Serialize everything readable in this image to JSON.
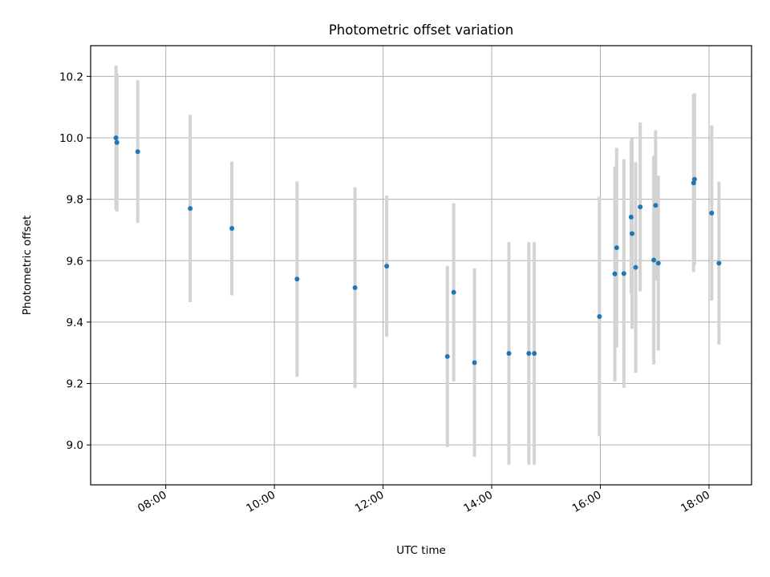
{
  "chart_data": {
    "type": "scatter",
    "title": "Photometric offset variation",
    "xlabel": "UTC time",
    "ylabel": "Photometric offset",
    "x_ticks": [
      "08:00",
      "10:00",
      "12:00",
      "14:00",
      "16:00",
      "18:00"
    ],
    "y_ticks": [
      "9.0",
      "9.2",
      "9.4",
      "9.6",
      "9.8",
      "10.0",
      "10.2"
    ],
    "xlim": [
      "06:37",
      "18:47"
    ],
    "ylim": [
      8.87,
      10.3
    ],
    "grid": true,
    "colors": {
      "point": "#1f77b4",
      "errorbar": "#d3d3d3",
      "grid": "#b0b0b0"
    },
    "points": [
      {
        "x": "07:05",
        "y": 10.0,
        "err": 0.235
      },
      {
        "x": "07:06",
        "y": 9.985,
        "err": 0.225
      },
      {
        "x": "07:29",
        "y": 9.955,
        "err": 0.232
      },
      {
        "x": "08:27",
        "y": 9.77,
        "err": 0.305
      },
      {
        "x": "09:13",
        "y": 9.705,
        "err": 0.218
      },
      {
        "x": "10:25",
        "y": 9.54,
        "err": 0.318
      },
      {
        "x": "11:29",
        "y": 9.512,
        "err": 0.327
      },
      {
        "x": "12:04",
        "y": 9.582,
        "err": 0.23
      },
      {
        "x": "13:11",
        "y": 9.288,
        "err": 0.295
      },
      {
        "x": "13:18",
        "y": 9.497,
        "err": 0.29
      },
      {
        "x": "13:41",
        "y": 9.268,
        "err": 0.307
      },
      {
        "x": "14:19",
        "y": 9.298,
        "err": 0.362
      },
      {
        "x": "14:41",
        "y": 9.298,
        "err": 0.362
      },
      {
        "x": "14:47",
        "y": 9.298,
        "err": 0.362
      },
      {
        "x": "15:59",
        "y": 9.418,
        "err": 0.39
      },
      {
        "x": "16:16",
        "y": 9.557,
        "err": 0.35
      },
      {
        "x": "16:18",
        "y": 9.642,
        "err": 0.325
      },
      {
        "x": "16:26",
        "y": 9.558,
        "err": 0.372
      },
      {
        "x": "16:34",
        "y": 9.742,
        "err": 0.25
      },
      {
        "x": "16:35",
        "y": 9.688,
        "err": 0.31
      },
      {
        "x": "16:39",
        "y": 9.578,
        "err": 0.343
      },
      {
        "x": "16:44",
        "y": 9.775,
        "err": 0.275
      },
      {
        "x": "16:59",
        "y": 9.602,
        "err": 0.34
      },
      {
        "x": "17:01",
        "y": 9.78,
        "err": 0.245
      },
      {
        "x": "17:04",
        "y": 9.592,
        "err": 0.285
      },
      {
        "x": "17:43",
        "y": 9.853,
        "err": 0.29
      },
      {
        "x": "17:44",
        "y": 9.865,
        "err": 0.28
      },
      {
        "x": "18:03",
        "y": 9.755,
        "err": 0.285
      },
      {
        "x": "18:11",
        "y": 9.592,
        "err": 0.265
      }
    ]
  }
}
